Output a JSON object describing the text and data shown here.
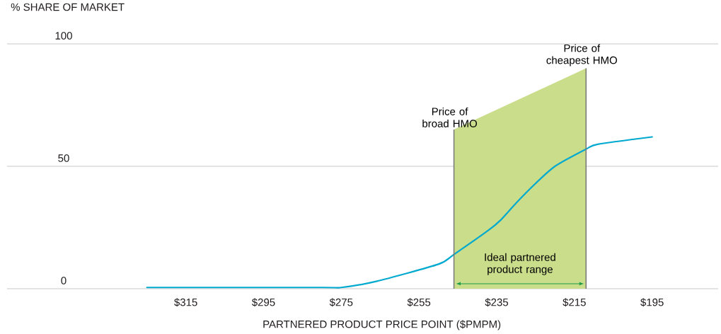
{
  "chart_data": {
    "type": "line",
    "ylabel": "% SHARE OF MARKET",
    "xlabel": "PARTNERED PRODUCT PRICE POINT ($PMPM)",
    "xlim": [
      361,
      178
    ],
    "ylim": [
      0,
      100
    ],
    "xticks": [
      {
        "value": 315,
        "label": "$315"
      },
      {
        "value": 295,
        "label": "$295"
      },
      {
        "value": 275,
        "label": "$275"
      },
      {
        "value": 255,
        "label": "$255"
      },
      {
        "value": 235,
        "label": "$235"
      },
      {
        "value": 215,
        "label": "$215"
      },
      {
        "value": 195,
        "label": "$195"
      }
    ],
    "yticks": [
      0,
      50,
      100
    ],
    "grid": "y",
    "series": [
      {
        "type": "area",
        "color": "#cadd8a",
        "x": [
          246,
          212
        ],
        "values": [
          65,
          90
        ]
      },
      {
        "color": "#00a9cf",
        "x": [
          325,
          280,
          275,
          266,
          250,
          246,
          237,
          234,
          230,
          225,
          220,
          212,
          209,
          195
        ],
        "values": [
          0.5,
          0.5,
          0.5,
          3,
          10,
          14,
          24,
          28,
          35,
          43,
          50,
          57,
          59,
          62
        ]
      }
    ],
    "ref_lines": [
      {
        "axis": "x",
        "value": 246,
        "label": "Price of broad HMO",
        "color": "#777777"
      },
      {
        "axis": "x",
        "value": 212,
        "label": "Price of cheapest HMO",
        "color": "#777777"
      }
    ],
    "annotations": [
      "Ideal partnered product range"
    ]
  }
}
